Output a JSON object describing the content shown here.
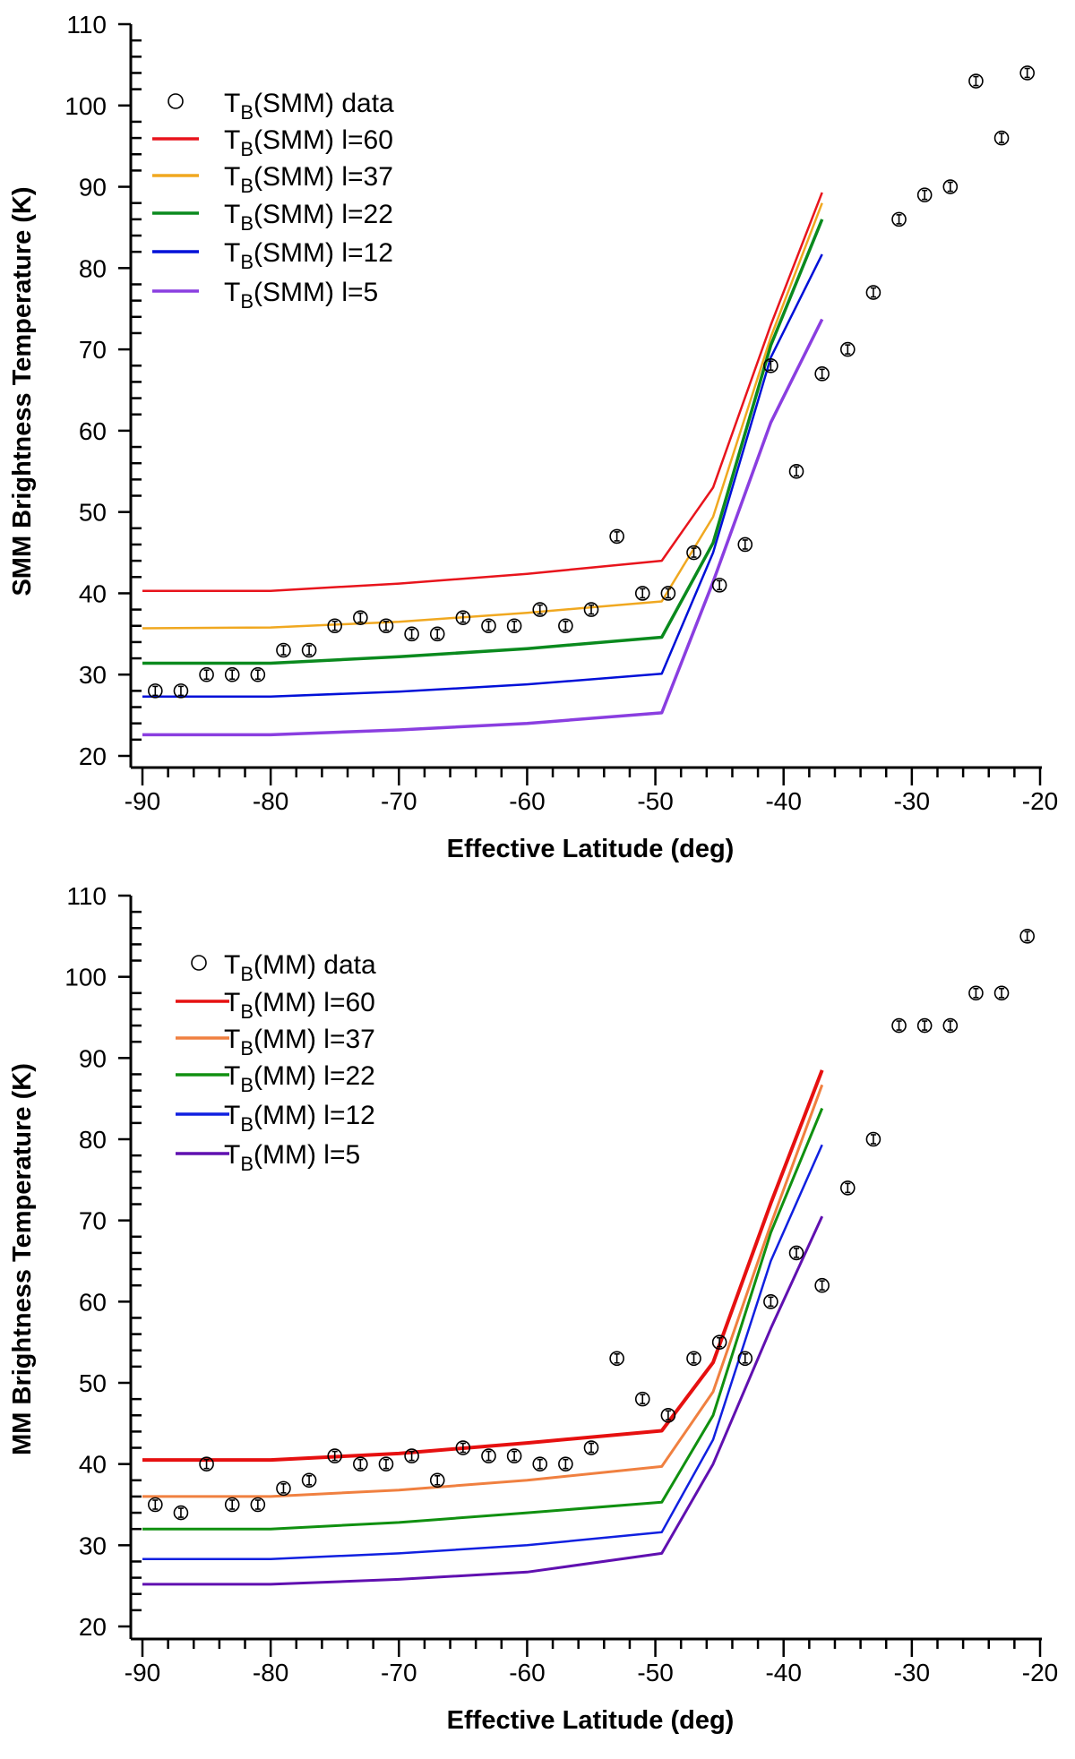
{
  "chart_data": [
    {
      "type": "line",
      "xlabel": "Effective Latitude (deg)",
      "ylabel": "SMM Brightness Temperature (K)",
      "xlim": [
        -90,
        -20
      ],
      "ylim": [
        20,
        110
      ],
      "xticks": [
        -90,
        -80,
        -70,
        -60,
        -50,
        -40,
        -30,
        -20
      ],
      "yticks": [
        20,
        30,
        40,
        50,
        60,
        70,
        80,
        90,
        100,
        110
      ],
      "grid": false,
      "legend_placement": "top-left",
      "data_series": {
        "name": "T_B(SMM) data",
        "marker": "open-circle",
        "x": [
          -89,
          -87,
          -85,
          -83,
          -81,
          -79,
          -77,
          -75,
          -73,
          -71,
          -69,
          -67,
          -65,
          -63,
          -61,
          -59,
          -57,
          -55,
          -53,
          -51,
          -49,
          -47,
          -45,
          -43,
          -41,
          -39,
          -37,
          -35,
          -33,
          -31,
          -29,
          -27,
          -25,
          -23,
          -21
        ],
        "y": [
          28,
          28,
          30,
          30,
          30,
          33,
          33,
          36,
          37,
          36,
          35,
          35,
          37,
          36,
          36,
          38,
          36,
          38,
          47,
          40,
          40,
          45,
          41,
          46,
          68,
          55,
          67,
          70,
          77,
          86,
          89,
          90,
          103,
          96,
          104
        ]
      },
      "model_x": [
        -90,
        -80,
        -70,
        -60,
        -49.5,
        -45.5,
        -41,
        -37
      ],
      "series": [
        {
          "name": "T_B(SMM) l=60",
          "color": "#e8141c",
          "values": [
            40.3,
            40.3,
            41.2,
            42.4,
            44.0,
            53.0,
            73.0,
            89.3
          ]
        },
        {
          "name": "T_B(SMM) l=37",
          "color": "#f0a820",
          "values": [
            35.7,
            35.8,
            36.5,
            37.6,
            39.0,
            49.4,
            71.5,
            88.0
          ]
        },
        {
          "name": "T_B(SMM) l=22",
          "color": "#0a8a1e",
          "values": [
            31.4,
            31.4,
            32.2,
            33.2,
            34.6,
            46.2,
            70.5,
            86.0
          ]
        },
        {
          "name": "T_B(SMM) l=12",
          "color": "#0010d8",
          "values": [
            27.3,
            27.3,
            27.9,
            28.8,
            30.1,
            45.0,
            69.0,
            81.7
          ]
        },
        {
          "name": "T_B(SMM) l=5",
          "color": "#8a3ee0",
          "values": [
            22.6,
            22.6,
            23.2,
            24.0,
            25.3,
            41.4,
            61.0,
            73.7
          ]
        }
      ]
    },
    {
      "type": "line",
      "xlabel": "Effective Latitude (deg)",
      "ylabel": "MM Brightness Temperature (K)",
      "xlim": [
        -90,
        -20
      ],
      "ylim": [
        20,
        110
      ],
      "xticks": [
        -90,
        -80,
        -70,
        -60,
        -50,
        -40,
        -30,
        -20
      ],
      "yticks": [
        20,
        30,
        40,
        50,
        60,
        70,
        80,
        90,
        100,
        110
      ],
      "grid": false,
      "legend_placement": "top-left",
      "data_series": {
        "name": "T_B(MM) data",
        "marker": "open-circle",
        "x": [
          -89,
          -87,
          -85,
          -83,
          -81,
          -79,
          -77,
          -75,
          -73,
          -71,
          -69,
          -67,
          -65,
          -63,
          -61,
          -59,
          -57,
          -55,
          -53,
          -51,
          -49,
          -47,
          -45,
          -43,
          -41,
          -39,
          -37,
          -35,
          -33,
          -31,
          -29,
          -27,
          -25,
          -23,
          -21
        ],
        "y": [
          35,
          34,
          40,
          35,
          35,
          37,
          38,
          41,
          40,
          40,
          41,
          38,
          42,
          41,
          41,
          40,
          40,
          42,
          53,
          48,
          46,
          53,
          55,
          53,
          60,
          66,
          62,
          74,
          80,
          94,
          94,
          94,
          98,
          98,
          105
        ]
      },
      "model_x": [
        -90,
        -80,
        -70,
        -60,
        -49.5,
        -45.5,
        -41,
        -37
      ],
      "series": [
        {
          "name": "T_B(MM) l=60",
          "color": "#e61010",
          "values": [
            40.5,
            40.5,
            41.3,
            42.6,
            44.1,
            52.5,
            72.1,
            88.5
          ]
        },
        {
          "name": "T_B(MM) l=37",
          "color": "#f08040",
          "values": [
            36.0,
            36.0,
            36.8,
            38.0,
            39.7,
            48.9,
            69.5,
            86.7
          ]
        },
        {
          "name": "T_B(MM) l=22",
          "color": "#109010",
          "values": [
            32.0,
            32.0,
            32.8,
            34.0,
            35.3,
            46.0,
            68.5,
            83.8
          ]
        },
        {
          "name": "T_B(MM) l=12",
          "color": "#1020e0",
          "values": [
            28.3,
            28.3,
            29.0,
            30.0,
            31.6,
            43.0,
            65.0,
            79.3
          ]
        },
        {
          "name": "T_B(MM) l=5",
          "color": "#6010b0",
          "values": [
            25.2,
            25.2,
            25.8,
            26.7,
            29.0,
            40.0,
            56.7,
            70.5
          ]
        }
      ]
    }
  ]
}
